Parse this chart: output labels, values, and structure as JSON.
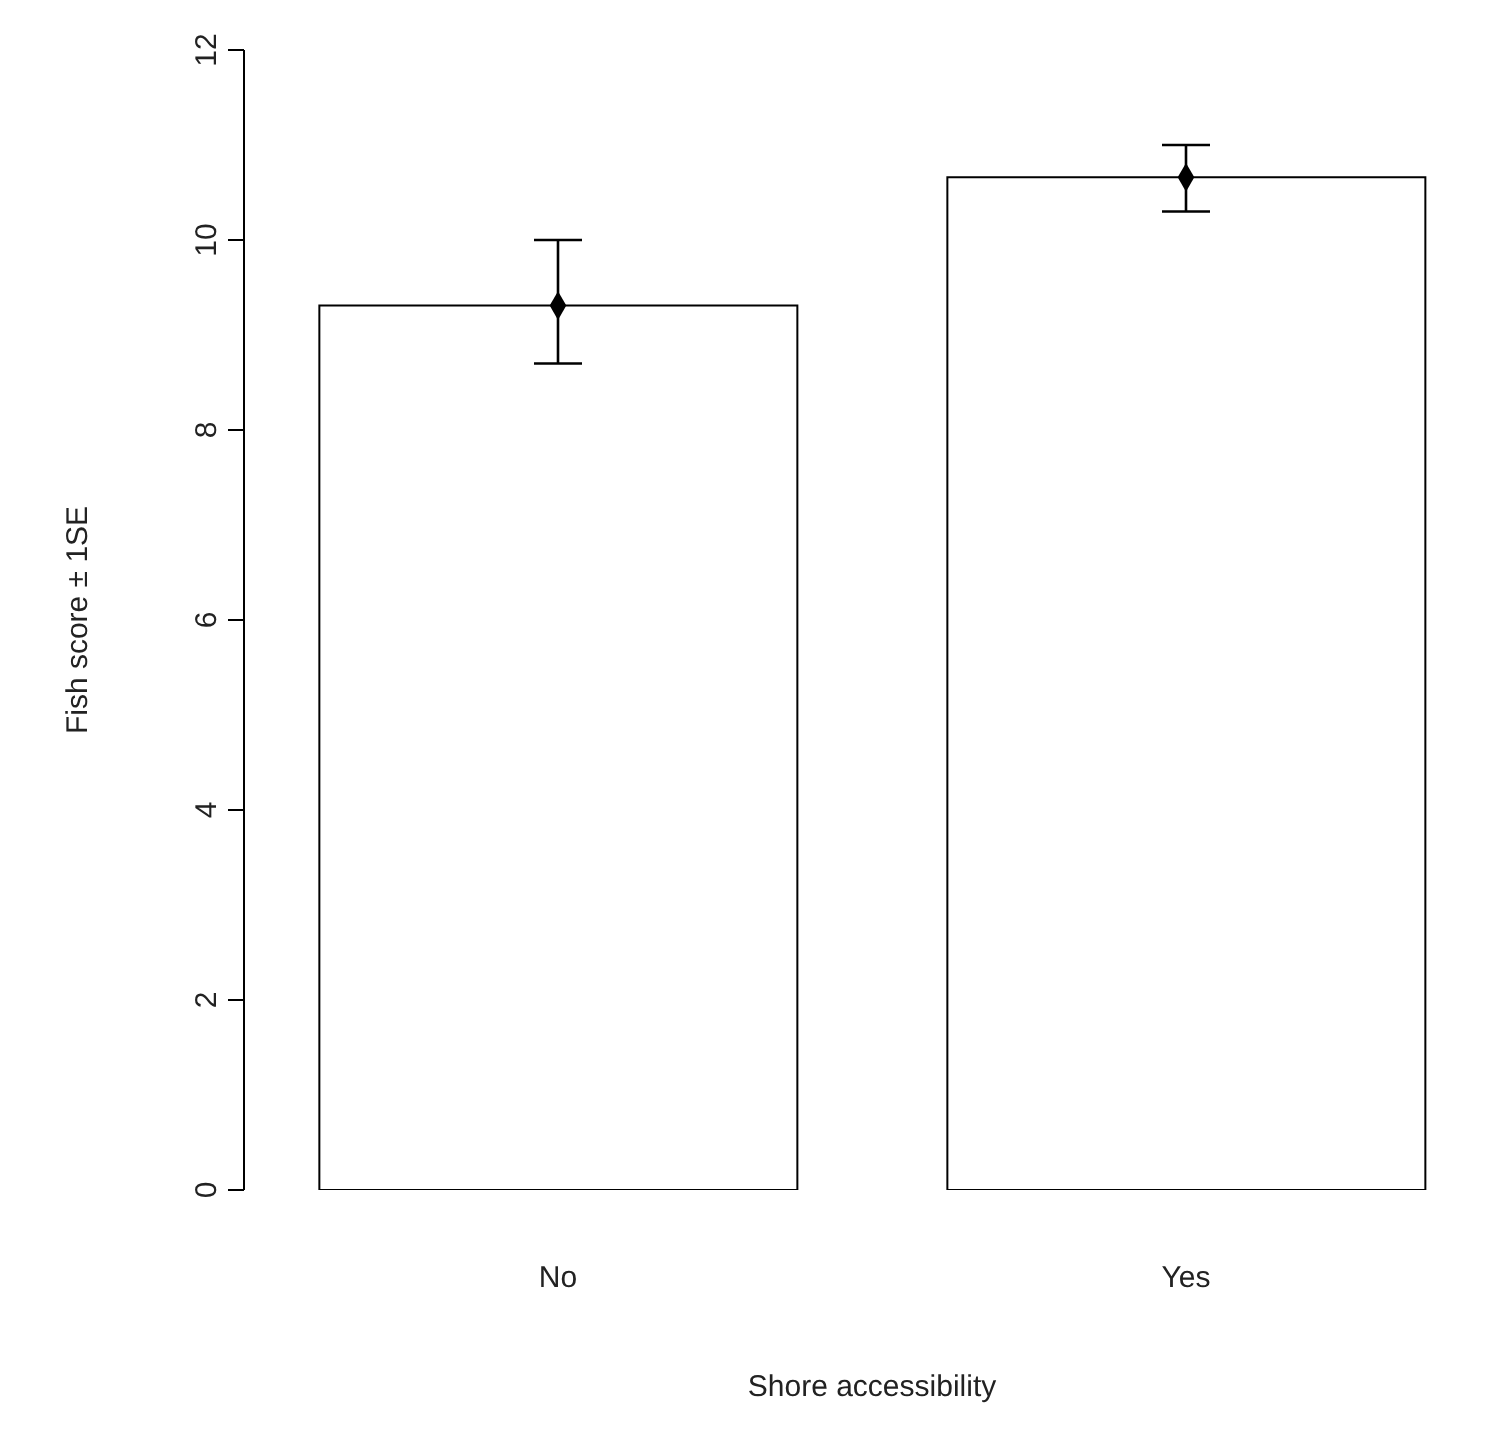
{
  "chart_data": {
    "type": "bar",
    "xlabel": "Shore accessibility",
    "ylabel": "Fish score ± 1SE",
    "categories": [
      "No",
      "Yes"
    ],
    "series": [
      {
        "color": "#ffffff",
        "values": [
          9.31,
          10.66
        ]
      },
      {
        "type": "scatter",
        "color": "#000000",
        "values": [
          9.31,
          10.66
        ],
        "errors": [
          [
            8.7,
            10.0
          ],
          [
            10.3,
            11.0
          ]
        ]
      }
    ],
    "marker": "diamond",
    "ylim": [
      0,
      12
    ],
    "yticks": [
      0,
      2,
      4,
      6,
      8,
      10,
      12
    ],
    "grid": false,
    "legend": false
  }
}
